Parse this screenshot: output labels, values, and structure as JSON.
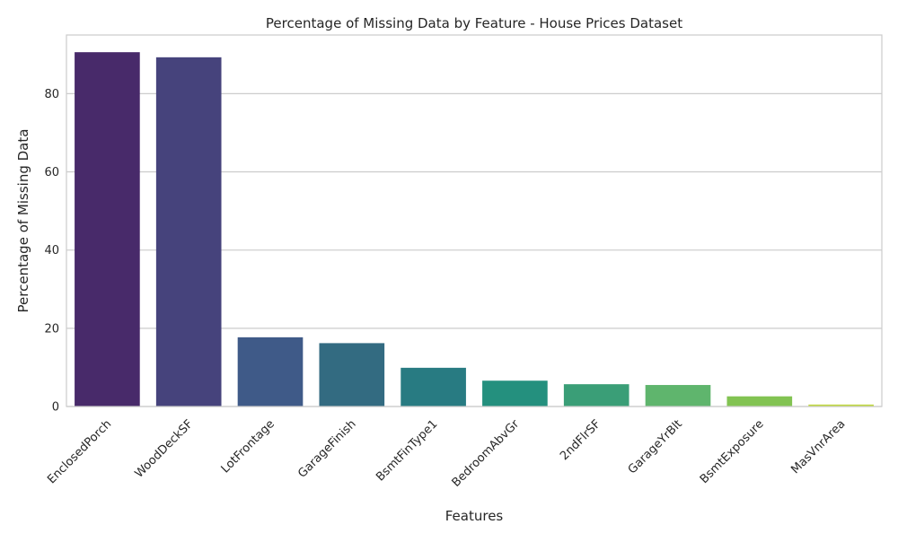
{
  "chart_data": {
    "type": "bar",
    "title": "Percentage of Missing Data by Feature - House Prices Dataset",
    "xlabel": "Features",
    "ylabel": "Percentage of Missing Data",
    "categories": [
      "EnclosedPorch",
      "WoodDeckSF",
      "LotFrontage",
      "GarageFinish",
      "BsmtFinType1",
      "BedroomAbvGr",
      "2ndFlrSF",
      "GarageYrBlt",
      "BsmtExposure",
      "MasVnrArea"
    ],
    "values": [
      90.6,
      89.3,
      17.7,
      16.2,
      9.9,
      6.6,
      5.7,
      5.5,
      2.6,
      0.5
    ],
    "colors": [
      "#482a6a",
      "#46437c",
      "#3f5a88",
      "#336b81",
      "#287b82",
      "#24907e",
      "#3a9e77",
      "#5fb56d",
      "#82c352",
      "#bfd73d"
    ],
    "ylim": [
      0,
      95
    ],
    "yticks": [
      0,
      20,
      40,
      60,
      80
    ],
    "grid": true,
    "legend": "none"
  }
}
